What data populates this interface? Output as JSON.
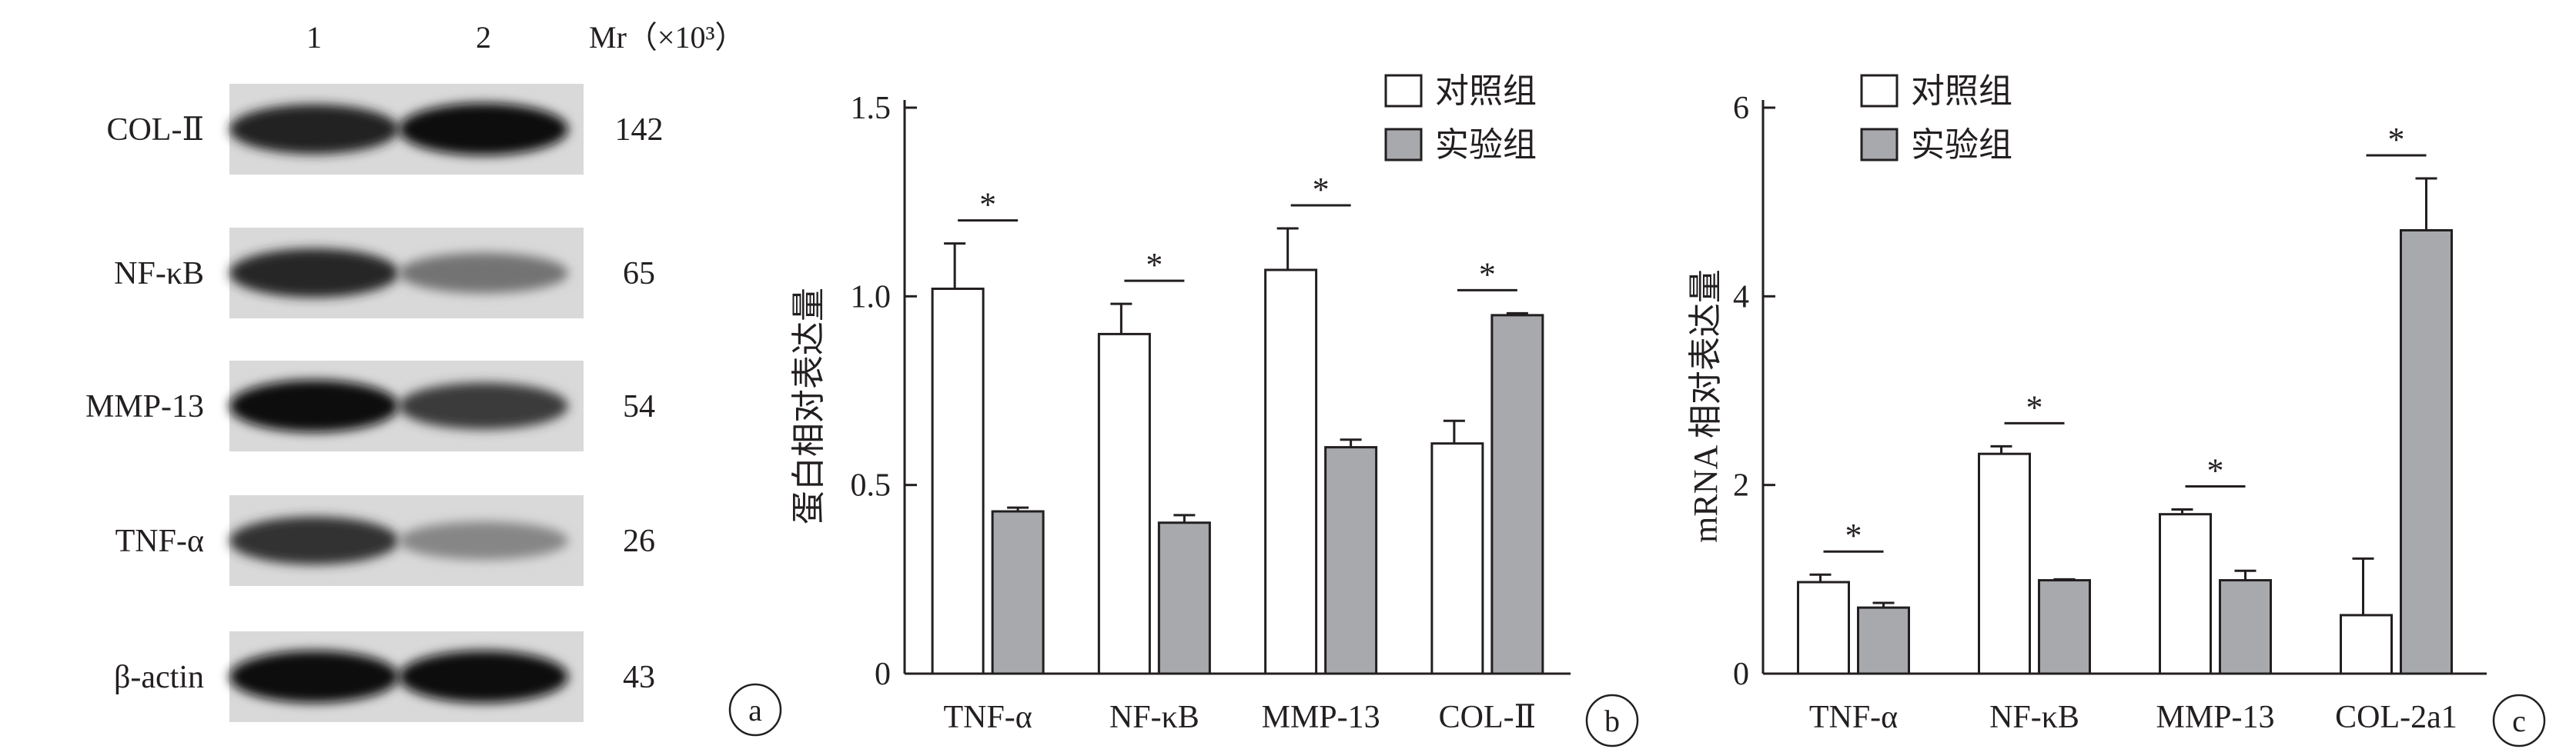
{
  "panel_a": {
    "badge": "a",
    "lane_labels": [
      "1",
      "2"
    ],
    "mr_label": "Mr（×10³）",
    "rows": [
      {
        "protein": "COL-Ⅱ",
        "mr": "142",
        "lane1_intensity": 0.88,
        "lane2_intensity": 1.0
      },
      {
        "protein": "NF-κB",
        "mr": "65",
        "lane1_intensity": 0.85,
        "lane2_intensity": 0.45
      },
      {
        "protein": "MMP-13",
        "mr": "54",
        "lane1_intensity": 1.0,
        "lane2_intensity": 0.75
      },
      {
        "protein": "TNF-α",
        "mr": "26",
        "lane1_intensity": 0.8,
        "lane2_intensity": 0.35
      },
      {
        "protein": "β-actin",
        "mr": "43",
        "lane1_intensity": 1.0,
        "lane2_intensity": 1.0
      }
    ]
  },
  "colors": {
    "control": "#ffffff",
    "experimental": "#a7a9ac",
    "stroke": "#231f20"
  },
  "chart_data": [
    {
      "type": "bar",
      "badge": "b",
      "ylabel": "蛋白相对表达量",
      "ylim": [
        0,
        1.5
      ],
      "yticks": [
        0,
        0.5,
        1.0,
        1.5
      ],
      "ytick_labels": [
        "0",
        "0.5",
        "1.0",
        "1.5"
      ],
      "categories": [
        "TNF-α",
        "NF-κB",
        "MMP-13",
        "COL-Ⅱ"
      ],
      "series": [
        {
          "name": "对照组",
          "values": [
            1.02,
            0.9,
            1.07,
            0.61
          ],
          "errors": [
            0.12,
            0.08,
            0.11,
            0.06
          ]
        },
        {
          "name": "实验组",
          "values": [
            0.43,
            0.4,
            0.6,
            0.95
          ],
          "errors": [
            0.01,
            0.02,
            0.02,
            0.005
          ]
        }
      ],
      "significance": [
        "*",
        "*",
        "*",
        "*"
      ],
      "legend_position": "top-right"
    },
    {
      "type": "bar",
      "badge": "c",
      "ylabel": "mRNA 相对表达量",
      "ylim": [
        0,
        6
      ],
      "yticks": [
        0,
        2,
        4,
        6
      ],
      "ytick_labels": [
        "0",
        "2",
        "4",
        "6"
      ],
      "categories": [
        "TNF-α",
        "NF-κB",
        "MMP-13",
        "COL-2a1"
      ],
      "series": [
        {
          "name": "对照组",
          "values": [
            0.97,
            2.33,
            1.69,
            0.62
          ],
          "errors": [
            0.08,
            0.08,
            0.05,
            0.6
          ]
        },
        {
          "name": "实验组",
          "values": [
            0.7,
            0.99,
            0.99,
            4.7
          ],
          "errors": [
            0.05,
            0.01,
            0.1,
            0.55
          ]
        }
      ],
      "significance": [
        "*",
        "*",
        "*",
        "*"
      ],
      "legend_position": "top-left"
    }
  ]
}
